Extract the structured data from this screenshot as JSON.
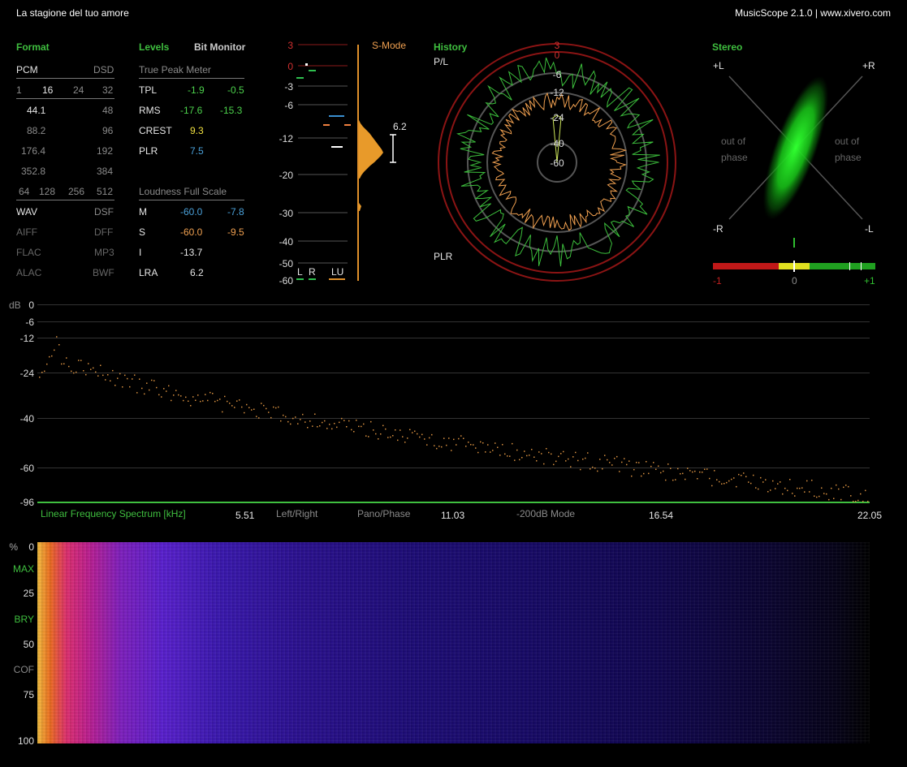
{
  "window": {
    "track_title": "La stagione del tuo amore",
    "app_title": "MusicScope 2.1.0 | www.xivero.com"
  },
  "format": {
    "heading": "Format",
    "pcm": "PCM",
    "dsd": "DSD",
    "bits": [
      "1",
      "16",
      "24",
      "32"
    ],
    "rates": [
      [
        "44.1",
        "48"
      ],
      [
        "88.2",
        "96"
      ],
      [
        "176.4",
        "192"
      ],
      [
        "352.8",
        "384"
      ]
    ],
    "dsd_rates": [
      "64",
      "128",
      "256",
      "512"
    ],
    "containers": [
      [
        "WAV",
        "DSF"
      ],
      [
        "AIFF",
        "DFF"
      ],
      [
        "FLAC",
        "MP3"
      ],
      [
        "ALAC",
        "BWF"
      ]
    ]
  },
  "levels": {
    "heading": "Levels",
    "bit_monitor": "Bit Monitor",
    "true_peak_heading": "True Peak Meter",
    "rows": [
      {
        "label": "TPL",
        "left": "-1.9",
        "right": "-0.5"
      },
      {
        "label": "RMS",
        "left": "-17.6",
        "right": "-15.3"
      },
      {
        "label": "CREST",
        "left": "9.3",
        "right": ""
      },
      {
        "label": "PLR",
        "left": "7.5",
        "right": ""
      }
    ],
    "loudness_heading": "Loudness Full Scale",
    "loudness_rows": [
      {
        "label": "M",
        "left": "-60.0",
        "right": "-7.8"
      },
      {
        "label": "S",
        "left": "-60.0",
        "right": "-9.5"
      },
      {
        "label": "I",
        "left": "-13.7",
        "right": ""
      },
      {
        "label": "LRA",
        "left": "6.2",
        "right": ""
      }
    ]
  },
  "meter": {
    "scale": [
      "3",
      "0",
      "-3",
      "-6",
      "-12",
      "-20",
      "-30",
      "-40",
      "-50",
      "-60"
    ],
    "mode_label": "S-Mode",
    "lra_value": "6.2",
    "channels": [
      "L",
      "R",
      "LU"
    ]
  },
  "history": {
    "heading": "History",
    "top_label": "P/L",
    "bottom_label": "PLR",
    "ring_labels": [
      "3",
      "0",
      "-6",
      "-12",
      "-24",
      "-40",
      "-60"
    ]
  },
  "stereo": {
    "heading": "Stereo",
    "corner_labels": {
      "tl": "+L",
      "tr": "+R",
      "bl": "-R",
      "br": "-L"
    },
    "out_of_phase": "out of\nphase",
    "correlation_labels": [
      "-1",
      "0",
      "+1"
    ]
  },
  "spectrum": {
    "y_unit": "dB",
    "y_ticks": [
      "0",
      "-6",
      "-12",
      "-24",
      "-40",
      "-60",
      "-96"
    ],
    "title": "Linear Frequency Spectrum [kHz]",
    "x_ticks": [
      "5.51",
      "11.03",
      "16.54",
      "22.05"
    ],
    "modes": [
      "Left/Right",
      "Pano/Phase",
      "-200dB Mode"
    ]
  },
  "spectrogram": {
    "y_unit": "%",
    "y_labels": [
      "0",
      "MAX",
      "25",
      "BRY",
      "50",
      "COF",
      "75",
      "100"
    ]
  },
  "colors": {
    "accent_green": "#3fbf3f",
    "level_green": "#4cd24c",
    "level_blue": "#4aa0d8",
    "level_orange": "#f0a050",
    "meter_red": "#c02020"
  }
}
